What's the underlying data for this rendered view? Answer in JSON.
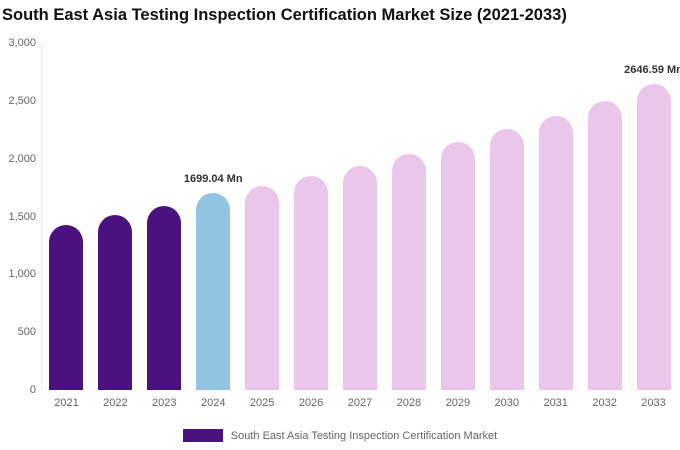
{
  "title": "South East Asia Testing Inspection Certification Market Size (2021-2033)",
  "legend": {
    "label": "South East Asia Testing Inspection Certification Market",
    "swatch_color": "#4A127E"
  },
  "colors": {
    "historical": "#4A127E",
    "current": "#92C5E1",
    "forecast": "#EAC7EA",
    "axis_text": "#666666",
    "title_text": "#111111",
    "data_label_text": "#333333",
    "axis_line": "#e6e6e6",
    "background": "#ffffff"
  },
  "chart_data": {
    "type": "bar",
    "title": "South East Asia Testing Inspection Certification Market Size (2021-2033)",
    "xlabel": "",
    "ylabel": "",
    "unit": "Mn",
    "categories": [
      "2021",
      "2022",
      "2023",
      "2024",
      "2025",
      "2026",
      "2027",
      "2028",
      "2029",
      "2030",
      "2031",
      "2032",
      "2033"
    ],
    "values": [
      1430,
      1510,
      1590,
      1699.04,
      1765,
      1850,
      1940,
      2040,
      2145,
      2260,
      2365,
      2495,
      2646.59
    ],
    "bar_colors": [
      "#4A127E",
      "#4A127E",
      "#4A127E",
      "#92C5E1",
      "#EAC7EA",
      "#EAC7EA",
      "#EAC7EA",
      "#EAC7EA",
      "#EAC7EA",
      "#EAC7EA",
      "#EAC7EA",
      "#EAC7EA",
      "#EAC7EA"
    ],
    "annotations": [
      {
        "category": "2024",
        "label": "1699.04 Mn"
      },
      {
        "category": "2033",
        "label": "2646.59 Mn"
      }
    ],
    "ylim": [
      0,
      3000
    ],
    "yticks": [
      {
        "value": 0,
        "label": "0"
      },
      {
        "value": 500,
        "label": "500"
      },
      {
        "value": 1000,
        "label": "1,000"
      },
      {
        "value": 1500,
        "label": "1,500"
      },
      {
        "value": 2000,
        "label": "2,000"
      },
      {
        "value": 2500,
        "label": "2,500"
      },
      {
        "value": 3000,
        "label": "3,000"
      }
    ],
    "grid": false,
    "legend_position": "bottom",
    "series": [
      {
        "name": "South East Asia Testing Inspection Certification Market",
        "values": [
          1430,
          1510,
          1590,
          1699.04,
          1765,
          1850,
          1940,
          2040,
          2145,
          2260,
          2365,
          2495,
          2646.59
        ]
      }
    ]
  }
}
